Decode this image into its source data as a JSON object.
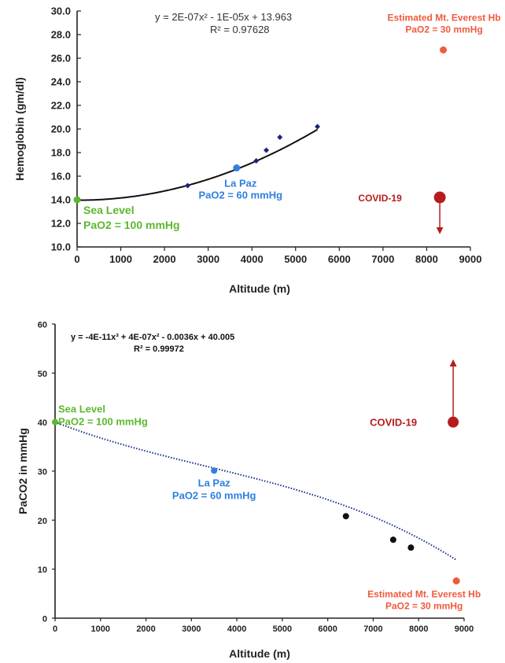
{
  "chart_data": [
    {
      "type": "scatter",
      "xlabel": "Altitude  (m)",
      "ylabel": "Hemoglobin  (gm/dl)",
      "xlim": [
        0,
        9000
      ],
      "ylim": [
        10,
        30
      ],
      "xticks": [
        "0",
        "1000",
        "2000",
        "3000",
        "4000",
        "5000",
        "6000",
        "7000",
        "8000",
        "9000"
      ],
      "yticks": [
        "10.0",
        "12.0",
        "14.0",
        "16.0",
        "18.0",
        "20.0",
        "22.0",
        "24.0",
        "26.0",
        "28.0",
        "30.0"
      ],
      "grid": false,
      "trendline": {
        "equation": "y = 2E-07x² - 1E-05x + 13.963",
        "r2": "R² = 0.97628",
        "coefficients": [
          2e-07,
          -1e-05,
          13.963
        ]
      },
      "series": [
        {
          "color": "#1a237e",
          "points": [
            [
              2530,
              15.2
            ],
            [
              4100,
              17.3
            ],
            [
              4330,
              18.2
            ],
            [
              4640,
              19.3
            ],
            [
              5500,
              20.2
            ]
          ]
        }
      ],
      "annotations": [
        {
          "id": "sea-level",
          "x": 0,
          "y": 14.0,
          "color": "#5cb82e",
          "lines": [
            "Sea Level",
            "PaO2 = 100 mmHg"
          ]
        },
        {
          "id": "la-paz",
          "x": 3650,
          "y": 16.7,
          "color": "#2f7fe0",
          "lines": [
            "La Paz",
            "PaO2 = 60 mmHg"
          ]
        },
        {
          "id": "everest",
          "x": 8380,
          "y": 26.7,
          "color": "#ef5b3c",
          "lines": [
            "Estimated Mt. Everest Hb",
            "PaO2 = 30 mmHg"
          ]
        },
        {
          "id": "covid",
          "x": 8300,
          "y": 14.2,
          "color": "#b71c1c",
          "lines": [
            "COVID-19"
          ],
          "arrow": "down",
          "arrow_to_y": 11.2
        }
      ]
    },
    {
      "type": "scatter",
      "xlabel": "Altitude  (m)",
      "ylabel": "PaCO2 in mmHg",
      "xlim": [
        0,
        9000
      ],
      "ylim": [
        0,
        60
      ],
      "xticks": [
        "0",
        "1000",
        "2000",
        "3000",
        "4000",
        "5000",
        "6000",
        "7000",
        "8000",
        "9000"
      ],
      "yticks": [
        "0",
        "10",
        "20",
        "30",
        "40",
        "50",
        "60"
      ],
      "grid": false,
      "trendline": {
        "equation": "y = -4E-11x³ + 4E-07x² - 0.0036x + 40.005",
        "r2": "R² = 0.99972",
        "coefficients": [
          -4e-11,
          4e-07,
          -0.0036,
          40.005
        ]
      },
      "series": [
        {
          "color": "#111111",
          "points": [
            [
              6400,
              20.8
            ],
            [
              7440,
              16.0
            ],
            [
              7830,
              14.4
            ]
          ]
        }
      ],
      "annotations": [
        {
          "id": "sea-level",
          "x": 0,
          "y": 40,
          "color": "#5cb82e",
          "lines": [
            "Sea Level",
            "PaO2 = 100 mmHg"
          ]
        },
        {
          "id": "la-paz",
          "x": 3500,
          "y": 30.1,
          "color": "#2f7fe0",
          "lines": [
            "La Paz",
            "PaO2 = 60 mmHg"
          ]
        },
        {
          "id": "everest",
          "x": 8830,
          "y": 7.6,
          "color": "#ef5b3c",
          "lines": [
            "Estimated Mt. Everest Hb",
            "PaO2 = 30 mmHg"
          ]
        },
        {
          "id": "covid",
          "x": 8760,
          "y": 40,
          "color": "#b71c1c",
          "lines": [
            "COVID-19"
          ],
          "arrow": "up",
          "arrow_to_y": 52.5
        }
      ]
    }
  ]
}
